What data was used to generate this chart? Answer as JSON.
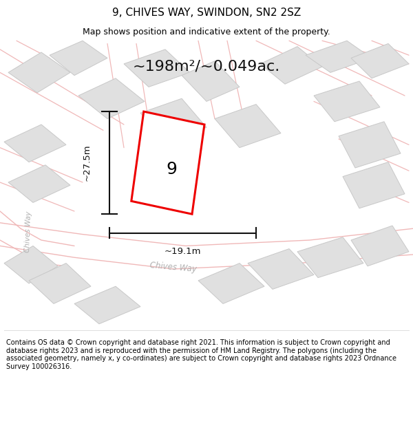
{
  "title": "9, CHIVES WAY, SWINDON, SN2 2SZ",
  "subtitle": "Map shows position and indicative extent of the property.",
  "area_label": "~198m²/~0.049ac.",
  "property_number": "9",
  "dim_width": "~19.1m",
  "dim_height": "~27.5m",
  "street_label_bottom": "Chives Way",
  "street_label_left": "Chives Way",
  "footer": "Contains OS data © Crown copyright and database right 2021. This information is subject to Crown copyright and database rights 2023 and is reproduced with the permission of HM Land Registry. The polygons (including the associated geometry, namely x, y co-ordinates) are subject to Crown copyright and database rights 2023 Ordnance Survey 100026316.",
  "bg_color": "#ffffff",
  "road_color": "#f0b8b8",
  "building_color": "#e0e0e0",
  "building_edge": "#c8c8c8",
  "plot_fill": "#ffffff",
  "plot_edge": "#ee0000",
  "dim_color": "#111111",
  "title_fontsize": 11,
  "subtitle_fontsize": 9,
  "area_fontsize": 16,
  "footer_fontsize": 7
}
